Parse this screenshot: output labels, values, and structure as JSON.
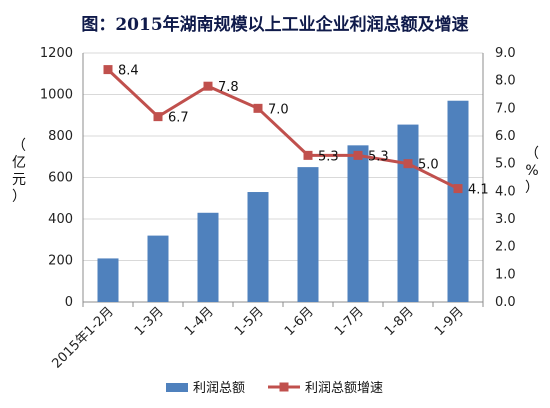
{
  "chart_data": {
    "type": "bar+line",
    "title": "图：2015年湖南规模以上工业企业利润总额及增速",
    "categories": [
      "2015年1-2月",
      "1-3月",
      "1-4月",
      "1-5月",
      "1-6月",
      "1-7月",
      "1-8月",
      "1-9月"
    ],
    "series": [
      {
        "name": "利润总额",
        "type": "bar",
        "axis": "left",
        "color": "#4f81bd",
        "values": [
          210,
          320,
          430,
          530,
          650,
          755,
          855,
          970
        ]
      },
      {
        "name": "利润总额增速",
        "type": "line",
        "axis": "right",
        "color": "#c0504d",
        "marker": "square",
        "values": [
          8.4,
          6.7,
          7.8,
          7.0,
          5.3,
          5.3,
          5.0,
          4.1
        ],
        "labels": [
          "8.4",
          "6.7",
          "7.8",
          "7.0",
          "5.3",
          "5.3",
          "5.0",
          "4.1"
        ]
      }
    ],
    "y_left": {
      "label": "（亿元）",
      "ylim": [
        0,
        1200
      ],
      "ticks": [
        "0",
        "200",
        "400",
        "600",
        "800",
        "1000",
        "1200"
      ]
    },
    "y_right": {
      "label": "（%）",
      "ylim": [
        0,
        9
      ],
      "ticks": [
        "0.0",
        "1.0",
        "2.0",
        "3.0",
        "4.0",
        "5.0",
        "6.0",
        "7.0",
        "8.0",
        "9.0"
      ]
    },
    "grid": true,
    "legend_position": "bottom"
  }
}
